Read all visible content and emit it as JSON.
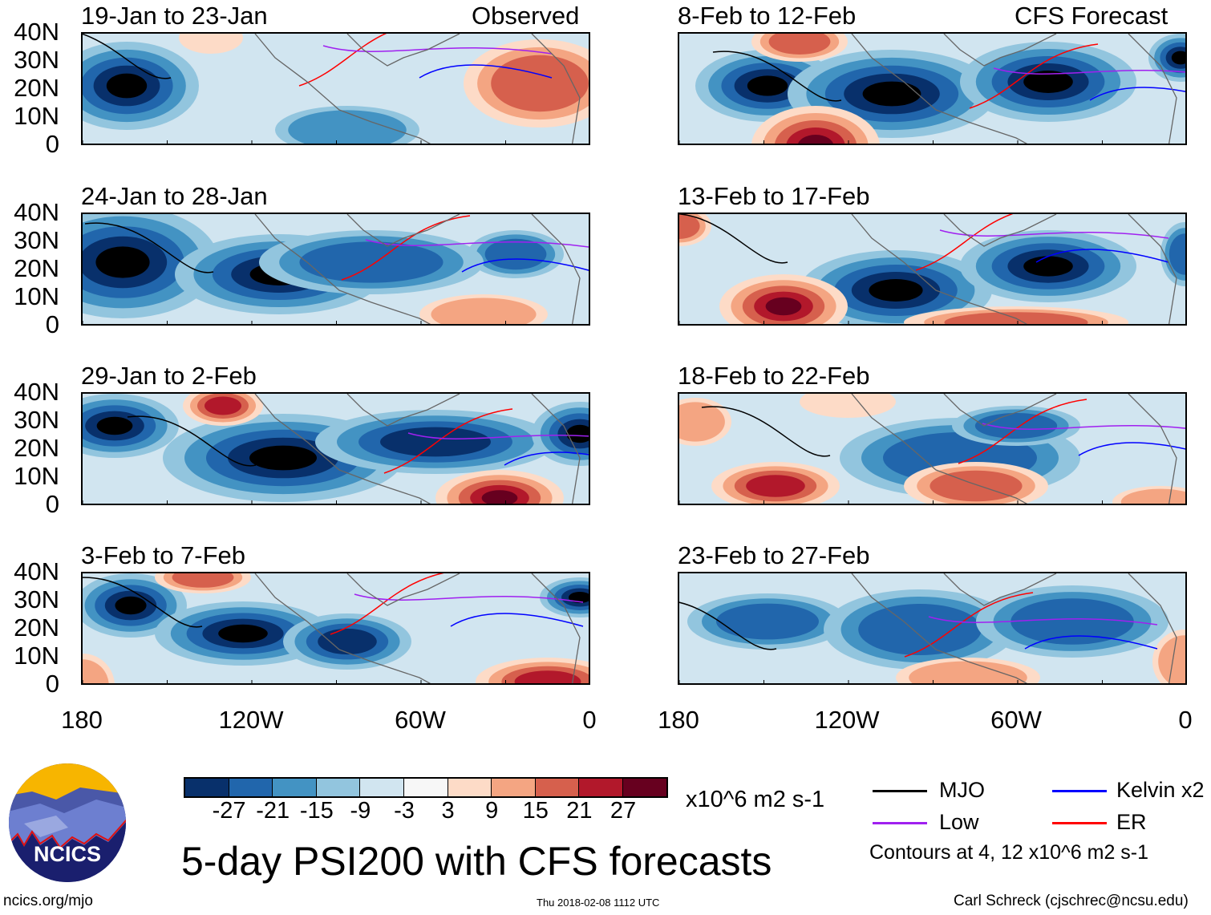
{
  "panels": {
    "left_header": "Observed",
    "right_header": "CFS Forecast",
    "observed": [
      "19-Jan to 23-Jan",
      "24-Jan to 28-Jan",
      "29-Jan to 2-Feb",
      "3-Feb to 7-Feb"
    ],
    "forecast": [
      "8-Feb to 12-Feb",
      "13-Feb to 17-Feb",
      "18-Feb to 22-Feb",
      "23-Feb to 27-Feb"
    ]
  },
  "axes": {
    "lat_labels": [
      "40N",
      "30N",
      "20N",
      "10N",
      "0"
    ],
    "lon_labels": [
      "180",
      "120W",
      "60W",
      "0"
    ]
  },
  "colorbar": {
    "colors": [
      "#08306b",
      "#2166ac",
      "#4393c3",
      "#92c5de",
      "#d1e5f0",
      "#f7f7f7",
      "#fddbc7",
      "#f4a582",
      "#d6604d",
      "#b2182b",
      "#67001f"
    ],
    "labels": [
      "-27",
      "-21",
      "-15",
      "-9",
      "-3",
      "3",
      "9",
      "15",
      "21",
      "27"
    ],
    "units": "x10^6 m2 s-1"
  },
  "legend": {
    "items": [
      {
        "label": "MJO",
        "color": "#000000"
      },
      {
        "label": "Kelvin x2",
        "color": "#0000ff"
      },
      {
        "label": "Low",
        "color": "#a020f0"
      },
      {
        "label": "ER",
        "color": "#ff0000"
      }
    ],
    "contours_note": "Contours at 4, 12 x10^6 m2 s-1"
  },
  "title": "5-day PSI200 with CFS forecasts",
  "logo_text": "NCICS",
  "footer": {
    "url": "ncics.org/mjo",
    "timestamp": "Thu 2018-02-08 1112 UTC",
    "author": "Carl Schreck (cjschrec@ncsu.edu)"
  }
}
